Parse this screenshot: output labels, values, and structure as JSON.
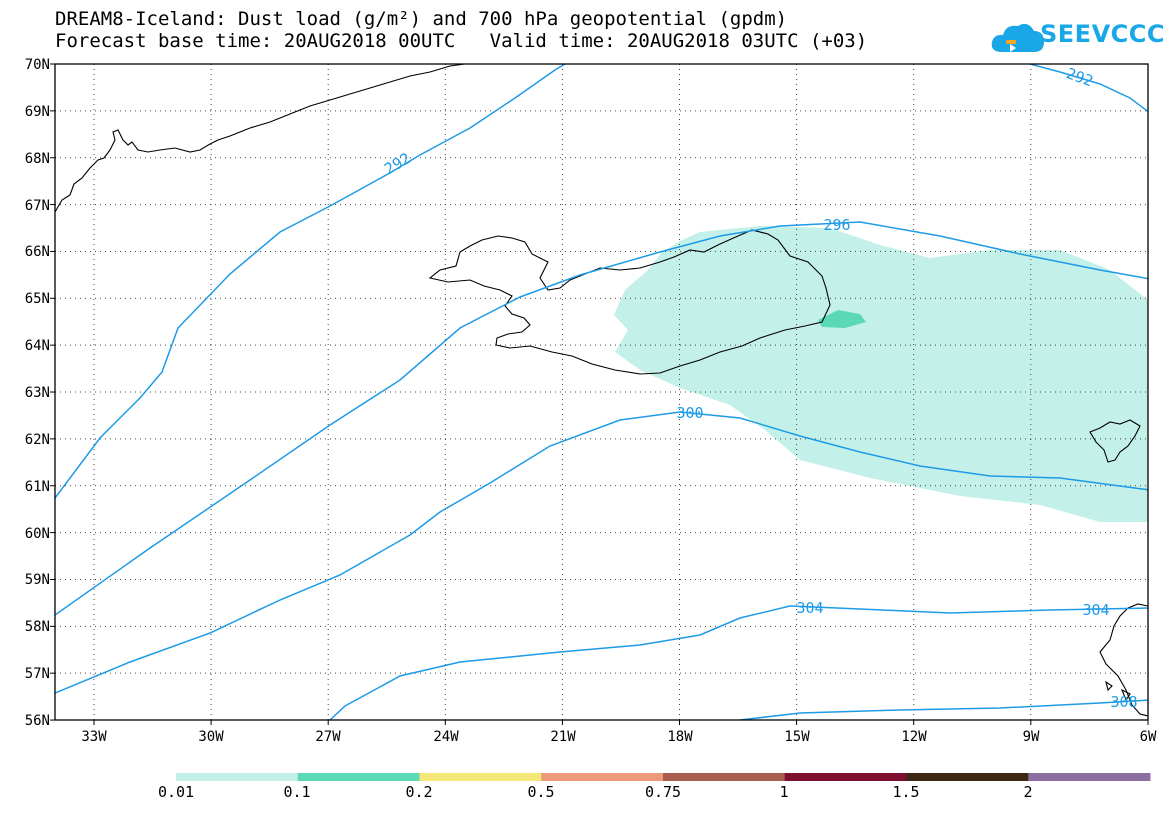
{
  "title": {
    "line1": "DREAM8-Iceland: Dust load (g/m²) and 700 hPa geopotential (gpdm)",
    "line2": "Forecast base time: 20AUG2018 00UTC   Valid time: 20AUG2018 03UTC (+03)"
  },
  "logo": {
    "text": "SEEVCCC",
    "icon": "cloud-icon"
  },
  "map": {
    "lat_labels": [
      "70N",
      "69N",
      "68N",
      "67N",
      "66N",
      "65N",
      "64N",
      "63N",
      "62N",
      "61N",
      "60N",
      "59N",
      "58N",
      "57N",
      "56N"
    ],
    "lon_labels": [
      "33W",
      "30W",
      "27W",
      "24W",
      "21W",
      "18W",
      "15W",
      "12W",
      "9W",
      "6W"
    ],
    "contour_labels": [
      "292",
      "292",
      "296",
      "300",
      "304",
      "304",
      "308"
    ],
    "contour_color": "#1e9be6",
    "dust_color": "#c4f0ea",
    "dust_core_color": "#5bd8b6"
  },
  "colorbar": {
    "colors": [
      "#c4f0ea",
      "#5bd8b6",
      "#f5e878",
      "#ec9a78",
      "#a85d4e",
      "#7d0e2e",
      "#3e2712",
      "#8c6ea3"
    ],
    "labels": [
      "0.01",
      "0.1",
      "0.2",
      "0.5",
      "0.75",
      "1",
      "1.5",
      "2"
    ]
  }
}
